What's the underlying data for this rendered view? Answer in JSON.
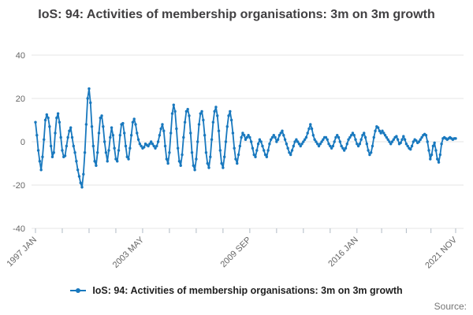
{
  "title": "IoS: 94: Activities of membership organisations: 3m on 3m growth",
  "source_label": "Source:",
  "legend": {
    "series_label": "IoS: 94: Activities of membership organisations: 3m on 3m growth"
  },
  "colors": {
    "series": "#1878be",
    "grid": "#e4e4e4",
    "tick": "#b0bac4",
    "axis_text": "#666666",
    "title_text": "#414042",
    "source_text": "#757575"
  },
  "chart_data": {
    "type": "line",
    "title": "IoS: 94: Activities of membership organisations: 3m on 3m growth",
    "xlabel": "",
    "ylabel": "",
    "frequency": "monthly",
    "x_start": "1997 JAN",
    "x_end": "2021 NOV",
    "x_tick_labels": [
      "1997 JAN",
      "2003 MAY",
      "2009 SEP",
      "2016 JAN",
      "2021 NOV"
    ],
    "x_tick_month_indices": [
      0,
      76,
      152,
      228,
      298
    ],
    "minor_ticks_between": 3,
    "y_ticks": [
      40,
      20,
      0,
      -20,
      -40
    ],
    "ylim": [
      -40,
      40
    ],
    "grid": "horizontal",
    "legend_position": "bottom",
    "marker": "circle",
    "series": [
      {
        "name": "IoS: 94: Activities of membership organisations: 3m on 3m growth",
        "values": [
          9,
          3,
          -4,
          -9,
          -13,
          -7,
          1,
          10,
          12.5,
          11,
          7,
          -2,
          -7,
          -5,
          4,
          11,
          13,
          9,
          2,
          -4,
          -7,
          -6.5,
          -2,
          2,
          5,
          6.5,
          2,
          -2,
          -5,
          -9,
          -13,
          -16,
          -19,
          -21,
          -15,
          -5,
          8,
          20,
          24.5,
          18,
          7,
          -2,
          -9,
          -11,
          -5,
          4,
          11,
          12,
          7,
          0,
          -5,
          -9,
          -4,
          2,
          6.5,
          3,
          -3,
          -8,
          -9,
          -4,
          3,
          8,
          8.5,
          4,
          -2,
          -7,
          -8,
          -3,
          3,
          9,
          10.5,
          8,
          4,
          1,
          -1,
          -2,
          -3,
          -2.5,
          -1,
          -1.5,
          -2,
          -1,
          0,
          -1,
          -2,
          -3,
          -2,
          0,
          3,
          6,
          8,
          5,
          -2,
          -8,
          -10,
          -5,
          4,
          13,
          17,
          14,
          6,
          -3,
          -9,
          -11,
          -6,
          2,
          9,
          14,
          15,
          12,
          4,
          -5,
          -11,
          -13,
          -8,
          0,
          8,
          13,
          14,
          10,
          3,
          -5,
          -10,
          -12,
          -7,
          1,
          9,
          14,
          16,
          12,
          5,
          -4,
          -10,
          -12,
          -7,
          0,
          7,
          12,
          14,
          10,
          4,
          -3,
          -8,
          -10,
          -6,
          -2,
          2,
          4,
          3,
          1,
          2,
          3,
          2,
          0,
          -3,
          -6,
          -7,
          -4,
          -1,
          1,
          0,
          -2,
          -4,
          -6,
          -7,
          -4,
          -1,
          1,
          2,
          3,
          2,
          0,
          1,
          3,
          4,
          5,
          3,
          1,
          -1,
          -3,
          -5,
          -6,
          -4,
          -2,
          0,
          1,
          0,
          -1,
          -2,
          -1,
          0,
          1,
          2,
          4,
          6,
          8,
          6,
          3,
          1,
          0,
          -1,
          -2,
          -1,
          0,
          1,
          2,
          2,
          1,
          -1,
          -2,
          -3,
          -2,
          0,
          2,
          3,
          2,
          0,
          -2,
          -3,
          -4,
          -3,
          -1,
          1,
          2,
          3,
          4,
          3,
          1,
          -1,
          -2,
          -1,
          1,
          3,
          4,
          2,
          -1,
          -4,
          -6,
          -5,
          -2,
          2,
          5,
          7,
          6.5,
          5,
          4,
          5,
          4,
          3,
          2,
          1,
          0,
          -1,
          0,
          1,
          2,
          2.5,
          1,
          -1,
          -0.5,
          1,
          2.5,
          1,
          -1,
          -2,
          -3,
          -3.5,
          -2,
          0,
          1,
          0.5,
          -0.5,
          0,
          1,
          2,
          3,
          3.5,
          3,
          0,
          -4,
          -8,
          -6,
          -2,
          -0.5,
          -4,
          -8,
          -9.5,
          -6,
          -1,
          1.5,
          2,
          1.5,
          1,
          1.5,
          2,
          1.5,
          1,
          1.5,
          1.5
        ]
      }
    ]
  }
}
